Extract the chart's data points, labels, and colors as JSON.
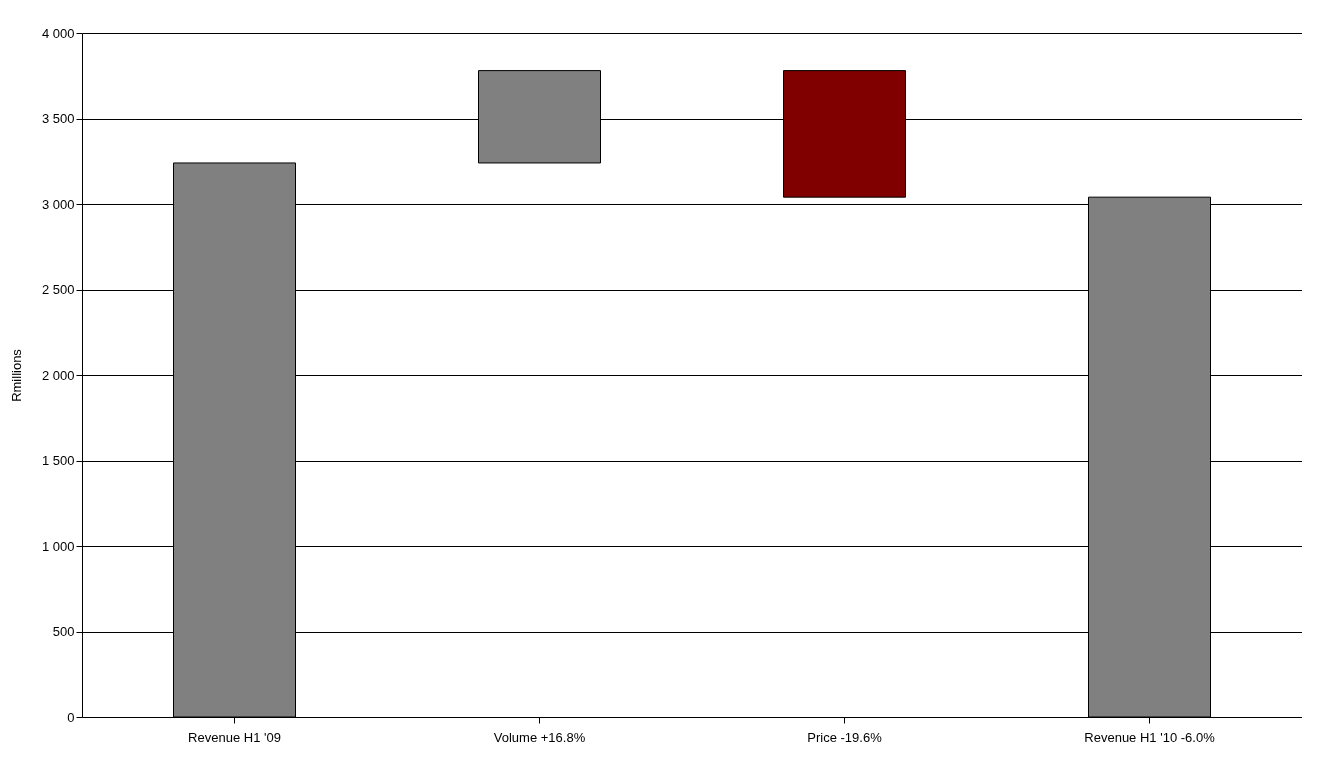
{
  "chart_data": {
    "type": "bar",
    "ylabel": "Rmillions",
    "categories": [
      "Revenue H1 '09",
      "Volume +16.8%",
      "Price -19.6%",
      "Revenue H1 '10 -6.0%"
    ],
    "values": [
      3240,
      540,
      -740,
      3040
    ],
    "base": [
      0,
      3240,
      3780,
      0
    ],
    "colors": [
      "#808080",
      "#808080",
      "#800000",
      "#808080"
    ],
    "ylim": [
      0,
      4000
    ],
    "yticks": [
      0,
      500,
      {
        "value": 1000,
        "label": "1 000"
      },
      {
        "value": 1500,
        "label": "1 500"
      },
      {
        "value": 2000,
        "label": "2 000"
      },
      {
        "value": 2500,
        "label": "2 500"
      },
      {
        "value": 3000,
        "label": "3 000"
      },
      {
        "value": 3500,
        "label": "3 500"
      },
      {
        "value": 4000,
        "label": "4 000"
      }
    ],
    "grid": "y"
  }
}
